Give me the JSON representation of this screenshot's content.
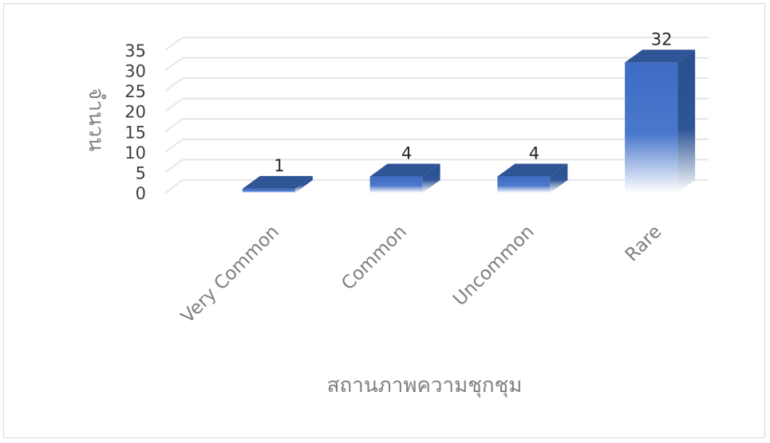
{
  "chart_data": {
    "type": "bar",
    "style": "3d-column",
    "categories": [
      "Very Common",
      "Common",
      "Uncommon",
      "Rare"
    ],
    "values": [
      1,
      4,
      4,
      32
    ],
    "data_labels": [
      "1",
      "4",
      "4",
      "32"
    ],
    "xlabel": "สถานภาพความชุกชุม",
    "ylabel": "จำนวน",
    "ylim": [
      0,
      35
    ],
    "yticks": [
      0,
      5,
      10,
      15,
      20,
      25,
      30,
      35
    ],
    "grid": true,
    "legend": "none",
    "colors": {
      "bar_front": "#4472c4",
      "bar_top": "#2f5597",
      "bar_side": "#264a87",
      "grid": "#e6e6e6"
    }
  }
}
